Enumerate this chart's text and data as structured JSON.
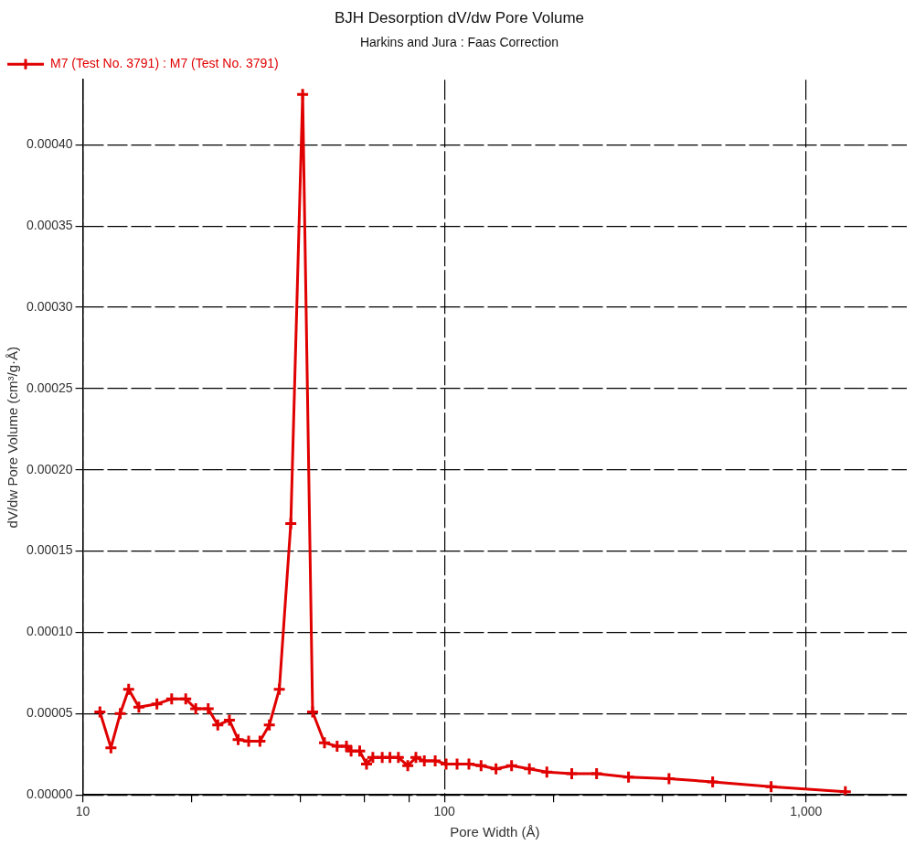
{
  "chart_data": {
    "type": "line",
    "title": "BJH Desorption dV/dw Pore Volume",
    "subtitle": "Harkins and Jura : Faas Correction",
    "xlabel": "Pore Width (Å)",
    "ylabel": "dV/dw Pore Volume (cm³/g·Å)",
    "log": "x",
    "grid": true,
    "legend": "top left",
    "marker": "cross",
    "line_style": "solid",
    "xlim": [
      10,
      1900
    ],
    "ylim": [
      0,
      0.00044
    ],
    "xticks": [
      10,
      {
        "value": 20,
        "label": null
      },
      {
        "value": 40,
        "label": null
      },
      {
        "value": 60,
        "label": null
      },
      {
        "value": 80,
        "label": null
      },
      100,
      {
        "value": 200,
        "label": null
      },
      {
        "value": 400,
        "label": null
      },
      {
        "value": 600,
        "label": null
      },
      {
        "value": 800,
        "label": null
      },
      {
        "value": 1000,
        "label": "1,000"
      }
    ],
    "yticks": [
      {
        "value": 0,
        "label": "0.00000"
      },
      {
        "value": 5e-05,
        "label": "0.00005"
      },
      {
        "value": 0.0001,
        "label": "0.00010"
      },
      {
        "value": 0.00015,
        "label": "0.00015"
      },
      {
        "value": 0.0002,
        "label": "0.00020"
      },
      {
        "value": 0.00025,
        "label": "0.00025"
      },
      {
        "value": 0.0003,
        "label": "0.00030"
      },
      {
        "value": 0.00035,
        "label": "0.00035"
      },
      {
        "value": 0.0004,
        "label": "0.00040"
      }
    ],
    "series": [
      {
        "name": "M7 (Test No. 3791) : M7 (Test No. 3791)",
        "color": "#e00000",
        "x": [
          11.15,
          11.96,
          12.69,
          13.39,
          14.29,
          16.03,
          17.61,
          19.26,
          20.53,
          22.22,
          23.62,
          25.43,
          26.89,
          28.75,
          30.89,
          32.8,
          34.95,
          37.6,
          40.55,
          43.2,
          46.6,
          50.5,
          53.6,
          55.2,
          58.3,
          60.9,
          63.4,
          67.3,
          70.7,
          74.6,
          79.2,
          83.4,
          88.0,
          94.3,
          101.1,
          108.4,
          116.9,
          126.3,
          138.9,
          153.4,
          171.8,
          192,
          225,
          263.6,
          323,
          418,
          552,
          801,
          1285
        ],
        "values": [
          5.1e-05,
          2.9e-05,
          5e-05,
          6.5e-05,
          5.4e-05,
          5.6e-05,
          5.9e-05,
          5.9e-05,
          5.3e-05,
          5.3e-05,
          4.3e-05,
          4.6e-05,
          3.4e-05,
          3.3e-05,
          3.3e-05,
          4.3e-05,
          6.5e-05,
          0.000167,
          0.000431,
          5.1e-05,
          3.2e-05,
          3e-05,
          3e-05,
          2.7e-05,
          2.7e-05,
          1.9e-05,
          2.3e-05,
          2.3e-05,
          2.3e-05,
          2.3e-05,
          1.8e-05,
          2.3e-05,
          2.1e-05,
          2.1e-05,
          1.9e-05,
          1.9e-05,
          1.9e-05,
          1.8e-05,
          1.6e-05,
          1.8e-05,
          1.6e-05,
          1.4e-05,
          1.3e-05,
          1.3e-05,
          1.1e-05,
          1e-05,
          8e-06,
          5e-06,
          2e-06
        ]
      }
    ]
  }
}
